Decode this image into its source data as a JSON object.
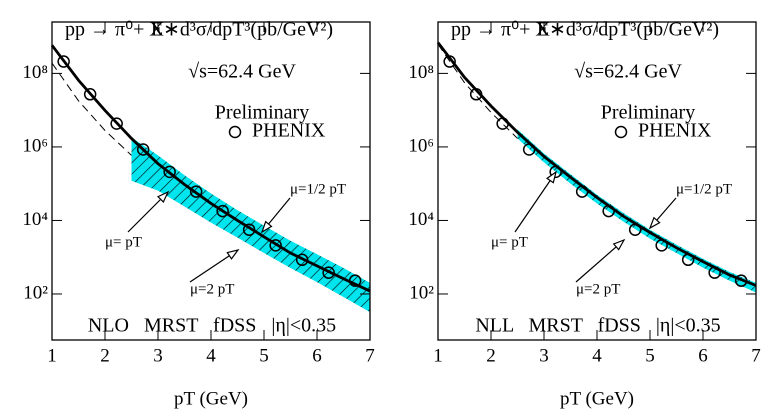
{
  "chart_data": [
    {
      "type": "line",
      "log_y": true,
      "xlabel": "pT (GeV)",
      "xlim": [
        1,
        7
      ],
      "xticks": [
        1,
        2,
        3,
        4,
        5,
        6,
        7
      ],
      "ylim": [
        5.6,
        2500000000
      ],
      "yticks": [
        {
          "value": 100,
          "label": "10²"
        },
        {
          "value": 10000,
          "label": "10⁴"
        },
        {
          "value": 1000000,
          "label": "10⁶"
        },
        {
          "value": 100000000,
          "label": "10⁸"
        }
      ],
      "annotations": [
        "pp → π⁰+ X",
        "E∗d³σ/dpT³(pb/GeV²)",
        "√s=62.4 GeV",
        "Preliminary",
        "NLO   MRST   fDSS   |η|<0.35"
      ],
      "series": [
        {
          "name": "PHENIX",
          "marker": "circle",
          "color": "#000000",
          "x": [
            1.22,
            1.72,
            2.22,
            2.72,
            3.22,
            3.72,
            4.22,
            4.72,
            5.22,
            5.72,
            6.22,
            6.72
          ],
          "values": [
            210000000,
            27000000,
            4300000,
            850000,
            210000,
            61000,
            18000,
            5600,
            2100,
            850,
            380,
            230
          ]
        },
        {
          "name": "μ= pT",
          "color": "#000000",
          "dash": false,
          "x": [
            1,
            1.5,
            2,
            2.5,
            3,
            3.5,
            4,
            4.5,
            5,
            5.5,
            6,
            6.5,
            7
          ],
          "values": [
            580000000,
            65000000,
            9800000,
            1700000,
            350000,
            95000,
            29000,
            10000,
            3600,
            1300,
            580,
            260,
            120
          ]
        },
        {
          "color": "#000000",
          "dash": true,
          "x": [
            1,
            1.5,
            2,
            2.5
          ],
          "values": [
            190000000,
            18000000,
            2800000,
            590000
          ]
        }
      ],
      "band": {
        "upper_name": "μ=1/2 pT",
        "lower_name": "μ=2 pT",
        "color": "#00e5ee",
        "x": [
          2.5,
          3,
          3.5,
          4,
          4.5,
          5,
          5.5,
          6,
          6.5,
          7
        ],
        "upper": [
          1800000,
          590000,
          170000,
          54000,
          19000,
          7200,
          2800,
          1200,
          510,
          200
        ],
        "lower": [
          120000,
          65000,
          24000,
          8700,
          3400,
          1300,
          510,
          210,
          83,
          32
        ]
      }
    },
    {
      "type": "line",
      "log_y": true,
      "xlabel": "pT (GeV)",
      "xlim": [
        1,
        7
      ],
      "xticks": [
        1,
        2,
        3,
        4,
        5,
        6,
        7
      ],
      "ylim": [
        5.6,
        2500000000
      ],
      "yticks": [
        {
          "value": 100,
          "label": "10²"
        },
        {
          "value": 10000,
          "label": "10⁴"
        },
        {
          "value": 1000000,
          "label": "10⁶"
        },
        {
          "value": 100000000,
          "label": "10⁸"
        }
      ],
      "annotations": [
        "pp → π⁰+ X",
        "E∗d³σ/dpT³(pb/GeV²)",
        "√s=62.4 GeV",
        "Preliminary",
        "NLL   MRST   fDSS   |η|<0.35"
      ],
      "series": [
        {
          "name": "PHENIX",
          "marker": "circle",
          "color": "#000000",
          "x": [
            1.22,
            1.72,
            2.22,
            2.72,
            3.22,
            3.72,
            4.22,
            4.72,
            5.22,
            5.72,
            6.22,
            6.72
          ],
          "values": [
            210000000,
            27000000,
            4300000,
            850000,
            210000,
            61000,
            18000,
            5600,
            2100,
            850,
            380,
            230
          ]
        },
        {
          "name": "μ= pT",
          "color": "#000000",
          "dash": false,
          "x": [
            1,
            1.5,
            2,
            2.5,
            3,
            3.5,
            4,
            4.5,
            5,
            5.5,
            6,
            6.5,
            7
          ],
          "values": [
            690000000,
            78000000,
            13000000,
            2500000,
            550000,
            150000,
            42000,
            13000,
            4700,
            1800,
            760,
            330,
            170
          ]
        },
        {
          "color": "#000000",
          "dash": true,
          "x": [
            1,
            1.5,
            2,
            2.5
          ],
          "values": [
            620000000,
            56000000,
            8700000,
            1700000
          ]
        }
      ],
      "band": {
        "upper_name": "μ=1/2 pT",
        "lower_name": "μ=2 pT",
        "color": "#00e5ee",
        "x": [
          2.5,
          3,
          3.5,
          4,
          4.5,
          5,
          5.5,
          6,
          6.5,
          7
        ],
        "upper": [
          3000000,
          660000,
          180000,
          50000,
          16000,
          5600,
          2200,
          910,
          400,
          200
        ],
        "lower": [
          1700000,
          380000,
          100000,
          29000,
          9300,
          3200,
          1300,
          520,
          230,
          110
        ]
      }
    }
  ]
}
